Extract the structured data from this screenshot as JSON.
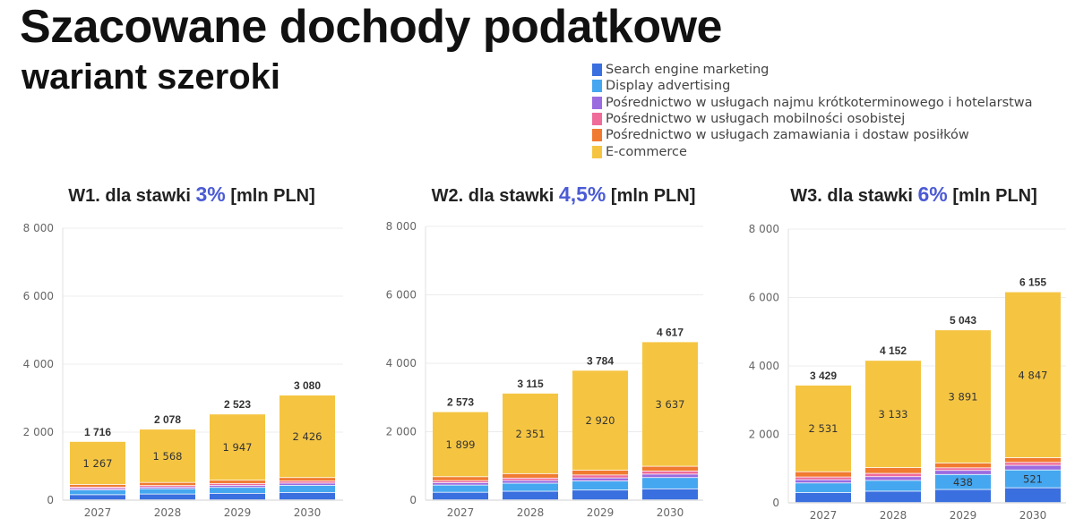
{
  "header": {
    "title": "Szacowane dochody podatkowe",
    "subtitle": "wariant szeroki"
  },
  "legend": [
    {
      "label": "Search engine marketing",
      "color": "#3a6fe0"
    },
    {
      "label": "Display advertising",
      "color": "#45a7f0"
    },
    {
      "label": "Pośrednictwo w usługach najmu krótkoterminowego i hotelarstwa",
      "color": "#9b6be0"
    },
    {
      "label": "Pośrednictwo w usługach mobilności osobistej",
      "color": "#ef6b9a"
    },
    {
      "label": "Pośrednictwo w usługach zamawiania i dostaw posiłków",
      "color": "#f07a30"
    },
    {
      "label": "E-commerce",
      "color": "#f5c542"
    }
  ],
  "chart_data": [
    {
      "type": "bar",
      "stacked": true,
      "title_prefix": "W1. dla stawki",
      "rate": "3%",
      "title_suffix": "[mln PLN]",
      "categories": [
        "2027",
        "2028",
        "2029",
        "2030"
      ],
      "ylim": [
        0,
        8000
      ],
      "yticks": [
        0,
        2000,
        4000,
        6000,
        8000
      ],
      "ytick_labels": [
        "0",
        "2 000",
        "4 000",
        "6 000",
        "8 000"
      ],
      "totals": [
        1716,
        2078,
        2523,
        3080
      ],
      "total_labels": [
        "1 716",
        "2 078",
        "2 523",
        "3 080"
      ],
      "series": [
        {
          "name": "Search engine marketing",
          "values": [
            150,
            170,
            190,
            215
          ]
        },
        {
          "name": "Display advertising",
          "values": [
            140,
            155,
            175,
            210
          ]
        },
        {
          "name": "Pośrednictwo w usługach najmu krótkoterminowego i hotelarstwa",
          "values": [
            45,
            50,
            60,
            65
          ]
        },
        {
          "name": "Pośrednictwo w usługach mobilności osobistej",
          "values": [
            40,
            45,
            55,
            60
          ]
        },
        {
          "name": "Pośrednictwo w usługach zamawiania i dostaw posiłków",
          "values": [
            74,
            90,
            96,
            104
          ]
        },
        {
          "name": "E-commerce",
          "values": [
            1267,
            1568,
            1947,
            2426
          ],
          "labels": [
            "1 267",
            "1 568",
            "1 947",
            "2 426"
          ]
        }
      ]
    },
    {
      "type": "bar",
      "stacked": true,
      "title_prefix": "W2. dla stawki",
      "rate": "4,5%",
      "title_suffix": "[mln PLN]",
      "categories": [
        "2027",
        "2028",
        "2029",
        "2030"
      ],
      "ylim": [
        0,
        8000
      ],
      "yticks": [
        0,
        2000,
        4000,
        6000,
        8000
      ],
      "ytick_labels": [
        "0",
        "2 000",
        "4 000",
        "6 000",
        "8 000"
      ],
      "totals": [
        2573,
        3115,
        3784,
        4617
      ],
      "total_labels": [
        "2 573",
        "3 115",
        "3 784",
        "4 617"
      ],
      "series": [
        {
          "name": "Search engine marketing",
          "values": [
            220,
            250,
            285,
            320
          ]
        },
        {
          "name": "Display advertising",
          "values": [
            210,
            235,
            265,
            330
          ]
        },
        {
          "name": "Pośrednictwo w usługach najmu krótkoterminowego i hotelarstwa",
          "values": [
            70,
            80,
            90,
            100
          ]
        },
        {
          "name": "Pośrednictwo w usługach mobilności osobistej",
          "values": [
            60,
            70,
            85,
            90
          ]
        },
        {
          "name": "Pośrednictwo w usługach zamawiania i dostaw posiłków",
          "values": [
            114,
            129,
            139,
            140
          ]
        },
        {
          "name": "E-commerce",
          "values": [
            1899,
            2351,
            2920,
            3637
          ],
          "labels": [
            "1 899",
            "2 351",
            "2 920",
            "3 637"
          ]
        }
      ]
    },
    {
      "type": "bar",
      "stacked": true,
      "title_prefix": "W3. dla stawki",
      "rate": "6%",
      "title_suffix": "[mln PLN]",
      "categories": [
        "2027",
        "2028",
        "2029",
        "2030"
      ],
      "ylim": [
        0,
        8000
      ],
      "yticks": [
        0,
        2000,
        4000,
        6000,
        8000
      ],
      "ytick_labels": [
        "0",
        "2 000",
        "4 000",
        "6 000",
        "8 000"
      ],
      "totals": [
        3429,
        4152,
        5043,
        6155
      ],
      "total_labels": [
        "3 429",
        "4 152",
        "5 043",
        "6 155"
      ],
      "series": [
        {
          "name": "Search engine marketing",
          "values": [
            290,
            330,
            380,
            430
          ]
        },
        {
          "name": "Display advertising",
          "values": [
            280,
            315,
            438,
            521
          ],
          "labels": [
            "",
            "",
            "438",
            "521"
          ]
        },
        {
          "name": "Pośrednictwo w usługach najmu krótkoterminowego i hotelarstwa",
          "values": [
            95,
            110,
            120,
            135
          ]
        },
        {
          "name": "Pośrednictwo w usługach mobilności osobistej",
          "values": [
            80,
            95,
            75,
            85
          ]
        },
        {
          "name": "Pośrednictwo w usługach zamawiania i dostaw posiłków",
          "values": [
            153,
            169,
            139,
            137
          ]
        },
        {
          "name": "E-commerce",
          "values": [
            2531,
            3133,
            3891,
            4847
          ],
          "labels": [
            "2 531",
            "3 133",
            "3 891",
            "4 847"
          ]
        }
      ]
    }
  ]
}
